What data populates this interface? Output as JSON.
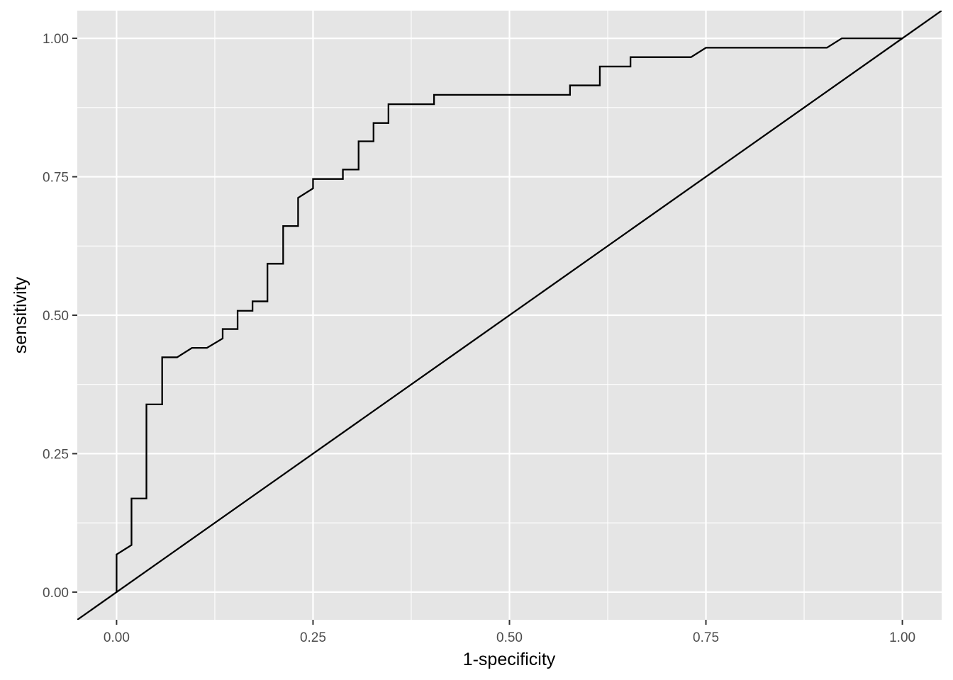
{
  "chart_data": {
    "type": "line",
    "title": "",
    "xlabel": "1-specificity",
    "ylabel": "sensitivity",
    "xlim": [
      -0.05,
      1.05
    ],
    "ylim": [
      -0.05,
      1.05
    ],
    "x_ticks": [
      0.0,
      0.25,
      0.5,
      0.75,
      1.0
    ],
    "x_tick_labels": [
      "0.00",
      "0.25",
      "0.50",
      "0.75",
      "1.00"
    ],
    "y_ticks": [
      0.0,
      0.25,
      0.5,
      0.75,
      1.0
    ],
    "y_tick_labels": [
      "0.00",
      "0.25",
      "0.50",
      "0.75",
      "1.00"
    ],
    "grid": true,
    "legend": "none",
    "colors": {
      "panel": "#e5e5e5",
      "grid": "#ffffff",
      "line": "#000000",
      "tick": "#4d4d4d"
    },
    "series": [
      {
        "style": "step",
        "x": [
          0.0,
          0.0,
          0.019,
          0.019,
          0.038,
          0.038,
          0.058,
          0.058,
          0.077,
          0.096,
          0.115,
          0.135,
          0.135,
          0.154,
          0.154,
          0.173,
          0.173,
          0.192,
          0.192,
          0.212,
          0.212,
          0.231,
          0.231,
          0.25,
          0.25,
          0.288,
          0.288,
          0.308,
          0.308,
          0.327,
          0.327,
          0.346,
          0.346,
          0.404,
          0.404,
          0.577,
          0.577,
          0.615,
          0.615,
          0.654,
          0.654,
          0.731,
          0.75,
          0.904,
          0.923,
          1.0
        ],
        "y": [
          0.0,
          0.068,
          0.085,
          0.169,
          0.169,
          0.339,
          0.339,
          0.424,
          0.424,
          0.441,
          0.441,
          0.458,
          0.475,
          0.475,
          0.508,
          0.508,
          0.525,
          0.525,
          0.593,
          0.593,
          0.661,
          0.661,
          0.712,
          0.729,
          0.746,
          0.746,
          0.763,
          0.763,
          0.814,
          0.814,
          0.847,
          0.847,
          0.881,
          0.881,
          0.898,
          0.898,
          0.915,
          0.915,
          0.949,
          0.949,
          0.966,
          0.966,
          0.983,
          0.983,
          1.0,
          1.0
        ]
      },
      {
        "style": "reference-diagonal",
        "x": [
          -0.05,
          1.05
        ],
        "y": [
          -0.05,
          1.05
        ]
      }
    ]
  }
}
